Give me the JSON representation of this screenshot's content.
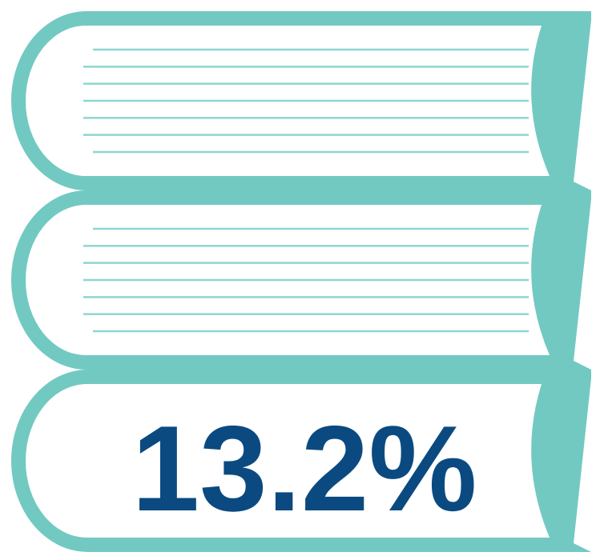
{
  "colors": {
    "book_teal": "#72C9C2",
    "page_lines": "#8ED6CF",
    "page_fill": "#FFFFFF",
    "stat_blue": "#0B4A80"
  },
  "illustration": {
    "subject": "stack-of-books-icon",
    "book_count": 3
  },
  "stat": {
    "value": "13.2%"
  }
}
